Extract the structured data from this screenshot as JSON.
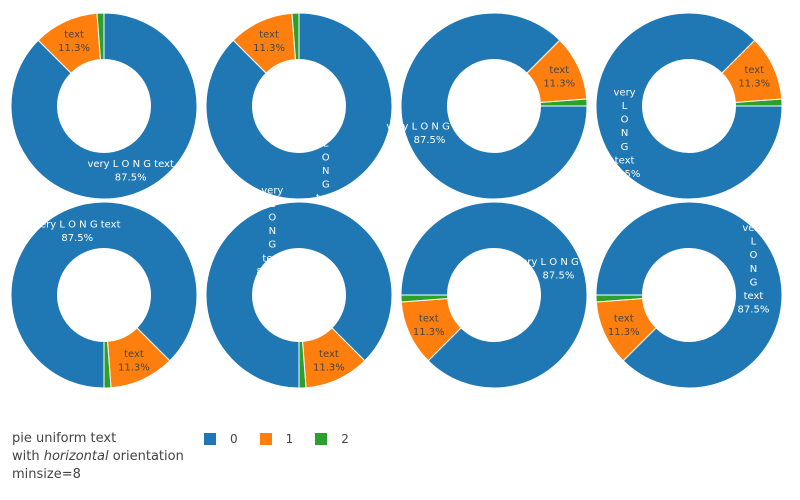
{
  "caption": {
    "line1": "pie uniform text",
    "line2_pre": "with ",
    "line2_em": "horizontal",
    "line2_post": " orientation",
    "line3": "minsize=8"
  },
  "legend": [
    {
      "label": "0",
      "color": "#1f77b4"
    },
    {
      "label": "1",
      "color": "#ff7f0e"
    },
    {
      "label": "2",
      "color": "#2ca02c"
    }
  ],
  "chart_data": {
    "type": "pie",
    "hole": 0.5,
    "uniformtext_minsize": 8,
    "uniformtext_mode": "hide",
    "series": [
      {
        "name": "0",
        "value": 87.5,
        "text": "very L O N G text",
        "color": "#1f77b4"
      },
      {
        "name": "1",
        "value": 11.3,
        "text": "text",
        "color": "#ff7f0e"
      },
      {
        "name": "2",
        "value": 1.2,
        "text": "",
        "color": "#2ca02c"
      }
    ],
    "subplots": [
      {
        "rotation_deg": 0,
        "label0_stacked": false
      },
      {
        "rotation_deg": 0,
        "label0_stacked": true
      },
      {
        "rotation_deg": 90,
        "label0_stacked": false
      },
      {
        "rotation_deg": 90,
        "label0_stacked": true
      },
      {
        "rotation_deg": 180,
        "label0_stacked": false
      },
      {
        "rotation_deg": 180,
        "label0_stacked": true
      },
      {
        "rotation_deg": 270,
        "label0_stacked": false
      },
      {
        "rotation_deg": 270,
        "label0_stacked": true
      }
    ]
  }
}
